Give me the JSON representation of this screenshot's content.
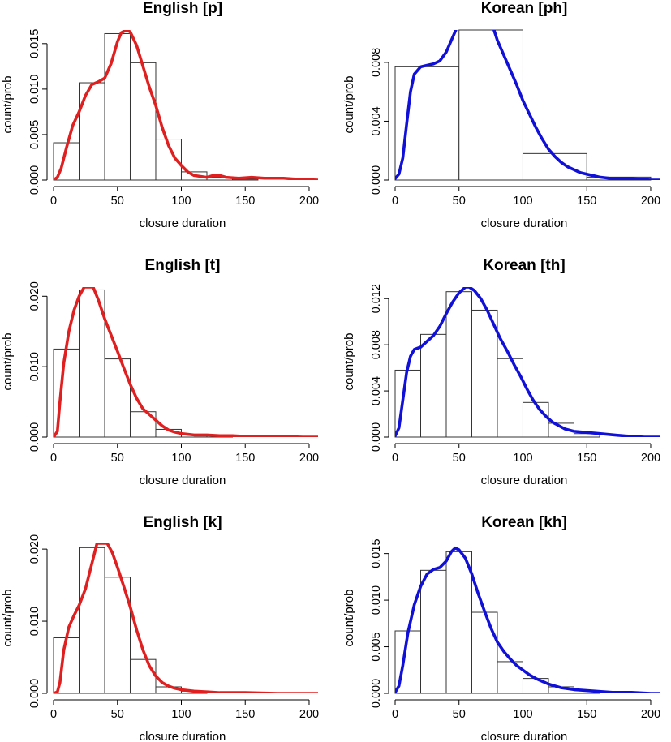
{
  "chart_data": [
    {
      "type": "histogram",
      "title": "English [p]",
      "xlabel": "closure duration",
      "ylabel": "count/prob",
      "xlim": [
        0,
        207
      ],
      "ylim": [
        0,
        0.0165
      ],
      "xticks": [
        0,
        50,
        100,
        150,
        200
      ],
      "xtick_labels": [
        "0",
        "50",
        "100",
        "150",
        "200"
      ],
      "yticks": [
        0,
        0.005,
        0.01,
        0.015
      ],
      "ytick_labels": [
        "0.000",
        "0.005",
        "0.010",
        "0.015"
      ],
      "bins": [
        [
          0,
          20,
          0.0041
        ],
        [
          20,
          40,
          0.0107
        ],
        [
          40,
          60,
          0.0161
        ],
        [
          60,
          80,
          0.0129
        ],
        [
          80,
          100,
          0.0045
        ],
        [
          100,
          120,
          0.0009
        ],
        [
          120,
          140,
          0.0003
        ],
        [
          140,
          160,
          0.0001
        ]
      ],
      "density_color": "#e02020",
      "density": [
        [
          0,
          0
        ],
        [
          3,
          0.0003
        ],
        [
          6,
          0.0013
        ],
        [
          10,
          0.0035
        ],
        [
          15,
          0.006
        ],
        [
          20,
          0.0075
        ],
        [
          25,
          0.0093
        ],
        [
          30,
          0.0105
        ],
        [
          35,
          0.0108
        ],
        [
          40,
          0.0112
        ],
        [
          45,
          0.0128
        ],
        [
          50,
          0.0152
        ],
        [
          53,
          0.0162
        ],
        [
          57,
          0.0165
        ],
        [
          60,
          0.0163
        ],
        [
          65,
          0.0148
        ],
        [
          70,
          0.0125
        ],
        [
          75,
          0.0102
        ],
        [
          80,
          0.0082
        ],
        [
          85,
          0.0058
        ],
        [
          90,
          0.0038
        ],
        [
          95,
          0.0024
        ],
        [
          100,
          0.0016
        ],
        [
          105,
          0.0009
        ],
        [
          110,
          0.0005
        ],
        [
          115,
          0.0004
        ],
        [
          120,
          0.0003
        ],
        [
          125,
          0.0005
        ],
        [
          130,
          0.0005
        ],
        [
          135,
          0.0003
        ],
        [
          145,
          0.0002
        ],
        [
          155,
          0.0003
        ],
        [
          165,
          0.0002
        ],
        [
          180,
          0.0002
        ],
        [
          190,
          0.0001
        ],
        [
          207,
          0
        ]
      ]
    },
    {
      "type": "histogram",
      "title": "Korean [ph]",
      "xlabel": "closure duration",
      "ylabel": "count/prob",
      "xlim": [
        0,
        207
      ],
      "ylim": [
        0,
        0.0102
      ],
      "xticks": [
        0,
        50,
        100,
        150,
        200
      ],
      "xtick_labels": [
        "0",
        "50",
        "100",
        "150",
        "200"
      ],
      "yticks": [
        0,
        0.004,
        0.008
      ],
      "ytick_labels": [
        "0.000",
        "0.004",
        "0.008"
      ],
      "bins": [
        [
          0,
          50,
          0.0077
        ],
        [
          50,
          100,
          0.0102
        ],
        [
          100,
          150,
          0.0018
        ],
        [
          150,
          200,
          0.0002
        ]
      ],
      "density_color": "#1010d8",
      "density": [
        [
          -5,
          0
        ],
        [
          0,
          0.0001
        ],
        [
          3,
          0.0004
        ],
        [
          6,
          0.0015
        ],
        [
          9,
          0.0038
        ],
        [
          12,
          0.006
        ],
        [
          15,
          0.0072
        ],
        [
          20,
          0.0077
        ],
        [
          25,
          0.0078
        ],
        [
          30,
          0.0079
        ],
        [
          35,
          0.0081
        ],
        [
          40,
          0.0087
        ],
        [
          45,
          0.0097
        ],
        [
          48,
          0.0103
        ],
        [
          77,
          0.0103
        ],
        [
          80,
          0.0095
        ],
        [
          85,
          0.0085
        ],
        [
          90,
          0.0075
        ],
        [
          95,
          0.0065
        ],
        [
          100,
          0.0054
        ],
        [
          105,
          0.0045
        ],
        [
          110,
          0.0036
        ],
        [
          115,
          0.0028
        ],
        [
          120,
          0.0021
        ],
        [
          125,
          0.0016
        ],
        [
          130,
          0.0012
        ],
        [
          135,
          0.0009
        ],
        [
          140,
          0.0007
        ],
        [
          145,
          0.0005
        ],
        [
          150,
          0.0004
        ],
        [
          155,
          0.0003
        ],
        [
          160,
          0.0002
        ],
        [
          170,
          0.0001
        ],
        [
          185,
          0.0001
        ],
        [
          200,
          0
        ],
        [
          207,
          0
        ]
      ]
    },
    {
      "type": "histogram",
      "title": "English [t]",
      "xlabel": "closure duration",
      "ylabel": "count/prob",
      "xlim": [
        0,
        207
      ],
      "ylim": [
        0,
        0.0213
      ],
      "xticks": [
        0,
        50,
        100,
        150,
        200
      ],
      "xtick_labels": [
        "0",
        "50",
        "100",
        "150",
        "200"
      ],
      "yticks": [
        0,
        0.01,
        0.02
      ],
      "ytick_labels": [
        "0.000",
        "0.010",
        "0.020"
      ],
      "bins": [
        [
          0,
          20,
          0.0125
        ],
        [
          20,
          40,
          0.0209
        ],
        [
          40,
          60,
          0.0111
        ],
        [
          60,
          80,
          0.0036
        ],
        [
          80,
          100,
          0.0011
        ],
        [
          100,
          120,
          0.0004
        ],
        [
          120,
          140,
          0.0002
        ]
      ],
      "density_color": "#e02020",
      "density": [
        [
          0,
          0
        ],
        [
          3,
          0.0008
        ],
        [
          5,
          0.005
        ],
        [
          8,
          0.0105
        ],
        [
          12,
          0.015
        ],
        [
          16,
          0.018
        ],
        [
          20,
          0.02
        ],
        [
          24,
          0.0213
        ],
        [
          31,
          0.0213
        ],
        [
          35,
          0.0195
        ],
        [
          40,
          0.0168
        ],
        [
          45,
          0.0145
        ],
        [
          50,
          0.0122
        ],
        [
          55,
          0.0098
        ],
        [
          60,
          0.0075
        ],
        [
          65,
          0.0055
        ],
        [
          70,
          0.004
        ],
        [
          75,
          0.0032
        ],
        [
          80,
          0.0024
        ],
        [
          85,
          0.0016
        ],
        [
          90,
          0.001
        ],
        [
          95,
          0.0007
        ],
        [
          100,
          0.0005
        ],
        [
          105,
          0.0004
        ],
        [
          110,
          0.0003
        ],
        [
          120,
          0.0003
        ],
        [
          130,
          0.0002
        ],
        [
          140,
          0.0002
        ],
        [
          150,
          0.0001
        ],
        [
          165,
          0.0001
        ],
        [
          180,
          0.0001
        ],
        [
          195,
          0
        ],
        [
          207,
          0
        ]
      ]
    },
    {
      "type": "histogram",
      "title": "Korean [th]",
      "xlabel": "closure duration",
      "ylabel": "count/prob",
      "xlim": [
        0,
        207
      ],
      "ylim": [
        0,
        0.013
      ],
      "xticks": [
        0,
        50,
        100,
        150,
        200
      ],
      "xtick_labels": [
        "0",
        "50",
        "100",
        "150",
        "200"
      ],
      "yticks": [
        0,
        0.004,
        0.008,
        0.012
      ],
      "ytick_labels": [
        "0.000",
        "0.004",
        "0.008",
        "0.012"
      ],
      "bins": [
        [
          0,
          20,
          0.0058
        ],
        [
          20,
          40,
          0.0089
        ],
        [
          40,
          60,
          0.0126
        ],
        [
          60,
          80,
          0.011
        ],
        [
          80,
          100,
          0.0068
        ],
        [
          100,
          120,
          0.003
        ],
        [
          120,
          140,
          0.0012
        ],
        [
          140,
          160,
          0.0003
        ]
      ],
      "density_color": "#1010d8",
      "density": [
        [
          -5,
          0
        ],
        [
          0,
          0.0001
        ],
        [
          3,
          0.0008
        ],
        [
          6,
          0.0032
        ],
        [
          9,
          0.0056
        ],
        [
          12,
          0.007
        ],
        [
          15,
          0.0076
        ],
        [
          20,
          0.0078
        ],
        [
          25,
          0.0083
        ],
        [
          30,
          0.0088
        ],
        [
          35,
          0.0096
        ],
        [
          40,
          0.0107
        ],
        [
          45,
          0.0117
        ],
        [
          50,
          0.0125
        ],
        [
          55,
          0.013
        ],
        [
          58,
          0.013
        ],
        [
          62,
          0.0127
        ],
        [
          67,
          0.012
        ],
        [
          72,
          0.011
        ],
        [
          77,
          0.0098
        ],
        [
          82,
          0.0086
        ],
        [
          88,
          0.0074
        ],
        [
          93,
          0.0063
        ],
        [
          98,
          0.0053
        ],
        [
          103,
          0.0042
        ],
        [
          108,
          0.0032
        ],
        [
          113,
          0.0024
        ],
        [
          118,
          0.0018
        ],
        [
          123,
          0.0013
        ],
        [
          128,
          0.001
        ],
        [
          133,
          0.0007
        ],
        [
          140,
          0.0005
        ],
        [
          150,
          0.0004
        ],
        [
          160,
          0.0003
        ],
        [
          170,
          0.0002
        ],
        [
          180,
          0.0001
        ],
        [
          195,
          0
        ],
        [
          207,
          0
        ]
      ]
    },
    {
      "type": "histogram",
      "title": "English [k]",
      "xlabel": "closure duration",
      "ylabel": "count/prob",
      "xlim": [
        0,
        207
      ],
      "ylim": [
        0,
        0.0208
      ],
      "xticks": [
        0,
        50,
        100,
        150,
        200
      ],
      "xtick_labels": [
        "0",
        "50",
        "100",
        "150",
        "200"
      ],
      "yticks": [
        0,
        0.01,
        0.02
      ],
      "ytick_labels": [
        "0.000",
        "0.010",
        "0.020"
      ],
      "bins": [
        [
          0,
          20,
          0.0077
        ],
        [
          20,
          40,
          0.0202
        ],
        [
          40,
          60,
          0.0161
        ],
        [
          60,
          80,
          0.0047
        ],
        [
          80,
          100,
          0.0009
        ],
        [
          100,
          120,
          0.0003
        ]
      ],
      "density_color": "#e02020",
      "density": [
        [
          0,
          0
        ],
        [
          3,
          0.0002
        ],
        [
          5,
          0.0015
        ],
        [
          8,
          0.006
        ],
        [
          12,
          0.0092
        ],
        [
          16,
          0.0108
        ],
        [
          20,
          0.0122
        ],
        [
          25,
          0.0145
        ],
        [
          30,
          0.018
        ],
        [
          34,
          0.0208
        ],
        [
          42,
          0.0208
        ],
        [
          46,
          0.0195
        ],
        [
          50,
          0.0175
        ],
        [
          55,
          0.0148
        ],
        [
          60,
          0.012
        ],
        [
          65,
          0.0088
        ],
        [
          70,
          0.006
        ],
        [
          75,
          0.0038
        ],
        [
          80,
          0.0024
        ],
        [
          85,
          0.0015
        ],
        [
          90,
          0.001
        ],
        [
          95,
          0.0007
        ],
        [
          100,
          0.0005
        ],
        [
          105,
          0.0004
        ],
        [
          110,
          0.0003
        ],
        [
          120,
          0.0002
        ],
        [
          130,
          0.0001
        ],
        [
          150,
          0.0001
        ],
        [
          175,
          0
        ],
        [
          207,
          0
        ]
      ]
    },
    {
      "type": "histogram",
      "title": "Korean [kh]",
      "xlabel": "closure duration",
      "ylabel": "count/prob",
      "xlim": [
        0,
        207
      ],
      "ylim": [
        0,
        0.0161
      ],
      "xticks": [
        0,
        50,
        100,
        150,
        200
      ],
      "xtick_labels": [
        "0",
        "50",
        "100",
        "150",
        "200"
      ],
      "yticks": [
        0,
        0.005,
        0.01,
        0.015
      ],
      "ytick_labels": [
        "0.000",
        "0.005",
        "0.010",
        "0.015"
      ],
      "bins": [
        [
          0,
          20,
          0.0067
        ],
        [
          20,
          40,
          0.0132
        ],
        [
          40,
          60,
          0.0152
        ],
        [
          60,
          80,
          0.0087
        ],
        [
          80,
          100,
          0.0034
        ],
        [
          100,
          120,
          0.0016
        ],
        [
          120,
          140,
          0.0007
        ],
        [
          140,
          160,
          0.0003
        ]
      ],
      "density_color": "#1010d8",
      "density": [
        [
          -5,
          0
        ],
        [
          0,
          0.0001
        ],
        [
          3,
          0.0008
        ],
        [
          6,
          0.003
        ],
        [
          10,
          0.0065
        ],
        [
          15,
          0.0095
        ],
        [
          20,
          0.0115
        ],
        [
          25,
          0.0128
        ],
        [
          30,
          0.0133
        ],
        [
          35,
          0.0135
        ],
        [
          40,
          0.0142
        ],
        [
          44,
          0.0152
        ],
        [
          47,
          0.0156
        ],
        [
          50,
          0.0154
        ],
        [
          55,
          0.0145
        ],
        [
          60,
          0.0128
        ],
        [
          65,
          0.0107
        ],
        [
          70,
          0.0088
        ],
        [
          75,
          0.007
        ],
        [
          80,
          0.0055
        ],
        [
          85,
          0.0045
        ],
        [
          90,
          0.0037
        ],
        [
          95,
          0.003
        ],
        [
          100,
          0.0025
        ],
        [
          105,
          0.002
        ],
        [
          110,
          0.0016
        ],
        [
          115,
          0.0013
        ],
        [
          120,
          0.001
        ],
        [
          125,
          0.0008
        ],
        [
          130,
          0.0006
        ],
        [
          135,
          0.0005
        ],
        [
          140,
          0.0004
        ],
        [
          150,
          0.0003
        ],
        [
          160,
          0.0002
        ],
        [
          170,
          0.0001
        ],
        [
          185,
          0.0001
        ],
        [
          200,
          0
        ],
        [
          207,
          0
        ]
      ]
    }
  ]
}
